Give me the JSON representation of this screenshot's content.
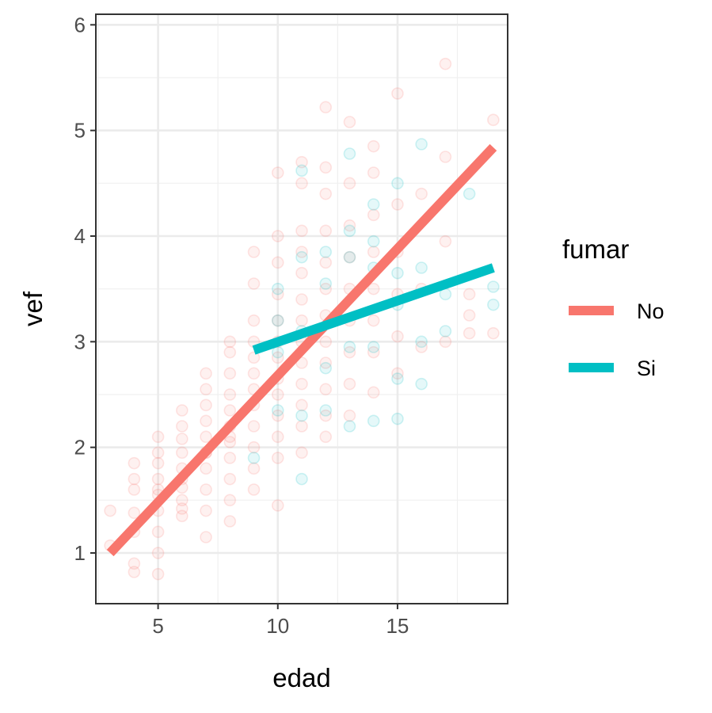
{
  "chart_data": {
    "type": "scatter",
    "xlabel": "edad",
    "ylabel": "vef",
    "xlim": [
      2.4,
      19.6
    ],
    "ylim": [
      0.52,
      6.1
    ],
    "x_ticks": [
      5,
      10,
      15
    ],
    "y_ticks": [
      1,
      2,
      3,
      4,
      5,
      6
    ],
    "grid": true,
    "legend": {
      "title": "fumar",
      "position": "right",
      "entries": [
        {
          "label": "No",
          "color": "#F8766D"
        },
        {
          "label": "Si",
          "color": "#00BFC4"
        }
      ]
    },
    "series": [
      {
        "name": "No",
        "color": "#F8766D",
        "points_x": [
          3,
          3,
          4,
          4,
          4,
          4,
          4,
          4,
          4,
          5,
          5,
          5,
          5,
          5,
          5,
          5,
          5,
          5,
          5,
          6,
          6,
          6,
          6,
          6,
          6,
          6,
          6,
          6,
          6,
          7,
          7,
          7,
          7,
          7,
          7,
          7,
          7,
          7,
          7,
          7,
          8,
          8,
          8,
          8,
          8,
          8,
          8,
          8,
          8,
          8,
          8,
          8,
          9,
          9,
          9,
          9,
          9,
          9,
          9,
          9,
          9,
          9,
          9,
          9,
          10,
          10,
          10,
          10,
          10,
          10,
          10,
          10,
          10,
          10,
          10,
          10,
          10,
          11,
          11,
          11,
          11,
          11,
          11,
          11,
          11,
          11,
          11,
          11,
          11,
          11,
          12,
          12,
          12,
          12,
          12,
          12,
          12,
          12,
          12,
          12,
          12,
          12,
          13,
          13,
          13,
          13,
          13,
          13,
          13,
          13,
          13,
          14,
          14,
          14,
          14,
          14,
          14,
          14,
          14,
          15,
          15,
          15,
          15,
          15,
          15,
          16,
          16,
          16,
          17,
          17,
          17,
          17,
          18,
          18,
          18,
          19,
          19
        ],
        "points_y": [
          1.4,
          1.07,
          0.82,
          0.9,
          1.2,
          1.38,
          1.6,
          1.7,
          1.85,
          0.8,
          1.0,
          1.2,
          1.4,
          1.55,
          1.6,
          1.7,
          1.85,
          1.95,
          2.1,
          1.35,
          1.5,
          1.62,
          1.8,
          1.95,
          2.08,
          2.2,
          2.35,
          1.42,
          1.7,
          1.15,
          1.4,
          1.6,
          1.8,
          1.95,
          2.1,
          2.25,
          2.4,
          2.55,
          2.7,
          1.95,
          1.3,
          1.5,
          1.7,
          1.9,
          2.05,
          2.2,
          2.35,
          2.5,
          2.7,
          2.9,
          3.0,
          2.1,
          1.6,
          1.8,
          2.0,
          2.2,
          2.4,
          2.55,
          2.7,
          2.85,
          3.0,
          3.2,
          3.55,
          3.85,
          1.45,
          1.9,
          2.1,
          2.3,
          2.5,
          2.65,
          2.85,
          3.0,
          3.2,
          3.45,
          3.75,
          4.0,
          4.6,
          1.95,
          2.2,
          2.4,
          2.6,
          2.8,
          3.0,
          3.2,
          3.4,
          3.65,
          3.85,
          4.05,
          4.5,
          4.7,
          2.1,
          2.3,
          2.55,
          2.8,
          3.0,
          3.25,
          3.5,
          3.75,
          4.05,
          4.4,
          4.65,
          5.22,
          2.3,
          2.6,
          2.9,
          3.2,
          3.5,
          3.8,
          4.1,
          4.5,
          5.08,
          2.52,
          2.9,
          3.2,
          3.5,
          3.85,
          4.2,
          4.6,
          4.85,
          2.7,
          3.05,
          3.45,
          3.85,
          4.3,
          5.35,
          2.95,
          3.5,
          4.4,
          3.0,
          3.95,
          4.75,
          5.63,
          3.08,
          3.25,
          3.45,
          3.08,
          5.1
        ],
        "fit_line": {
          "x": [
            3,
            19
          ],
          "y": [
            1.0,
            4.84
          ]
        }
      },
      {
        "name": "Si",
        "color": "#00BFC4",
        "points_x": [
          9,
          10,
          10,
          10,
          10,
          11,
          11,
          11,
          11,
          11,
          12,
          12,
          12,
          12,
          13,
          13,
          13,
          13,
          13,
          14,
          14,
          14,
          14,
          14,
          15,
          15,
          15,
          15,
          15,
          16,
          16,
          16,
          16,
          17,
          17,
          18,
          19,
          19
        ],
        "points_y": [
          1.9,
          2.35,
          2.9,
          3.2,
          3.5,
          1.7,
          2.3,
          3.1,
          3.8,
          4.62,
          2.35,
          2.75,
          3.55,
          3.85,
          2.2,
          2.95,
          3.8,
          4.05,
          4.78,
          2.25,
          2.95,
          3.7,
          3.95,
          4.3,
          2.27,
          2.65,
          3.35,
          3.65,
          4.5,
          2.6,
          3.0,
          3.7,
          4.87,
          3.1,
          3.45,
          4.4,
          3.35,
          3.52
        ],
        "fit_line": {
          "x": [
            9,
            19
          ],
          "y": [
            2.92,
            3.7
          ]
        }
      }
    ]
  }
}
